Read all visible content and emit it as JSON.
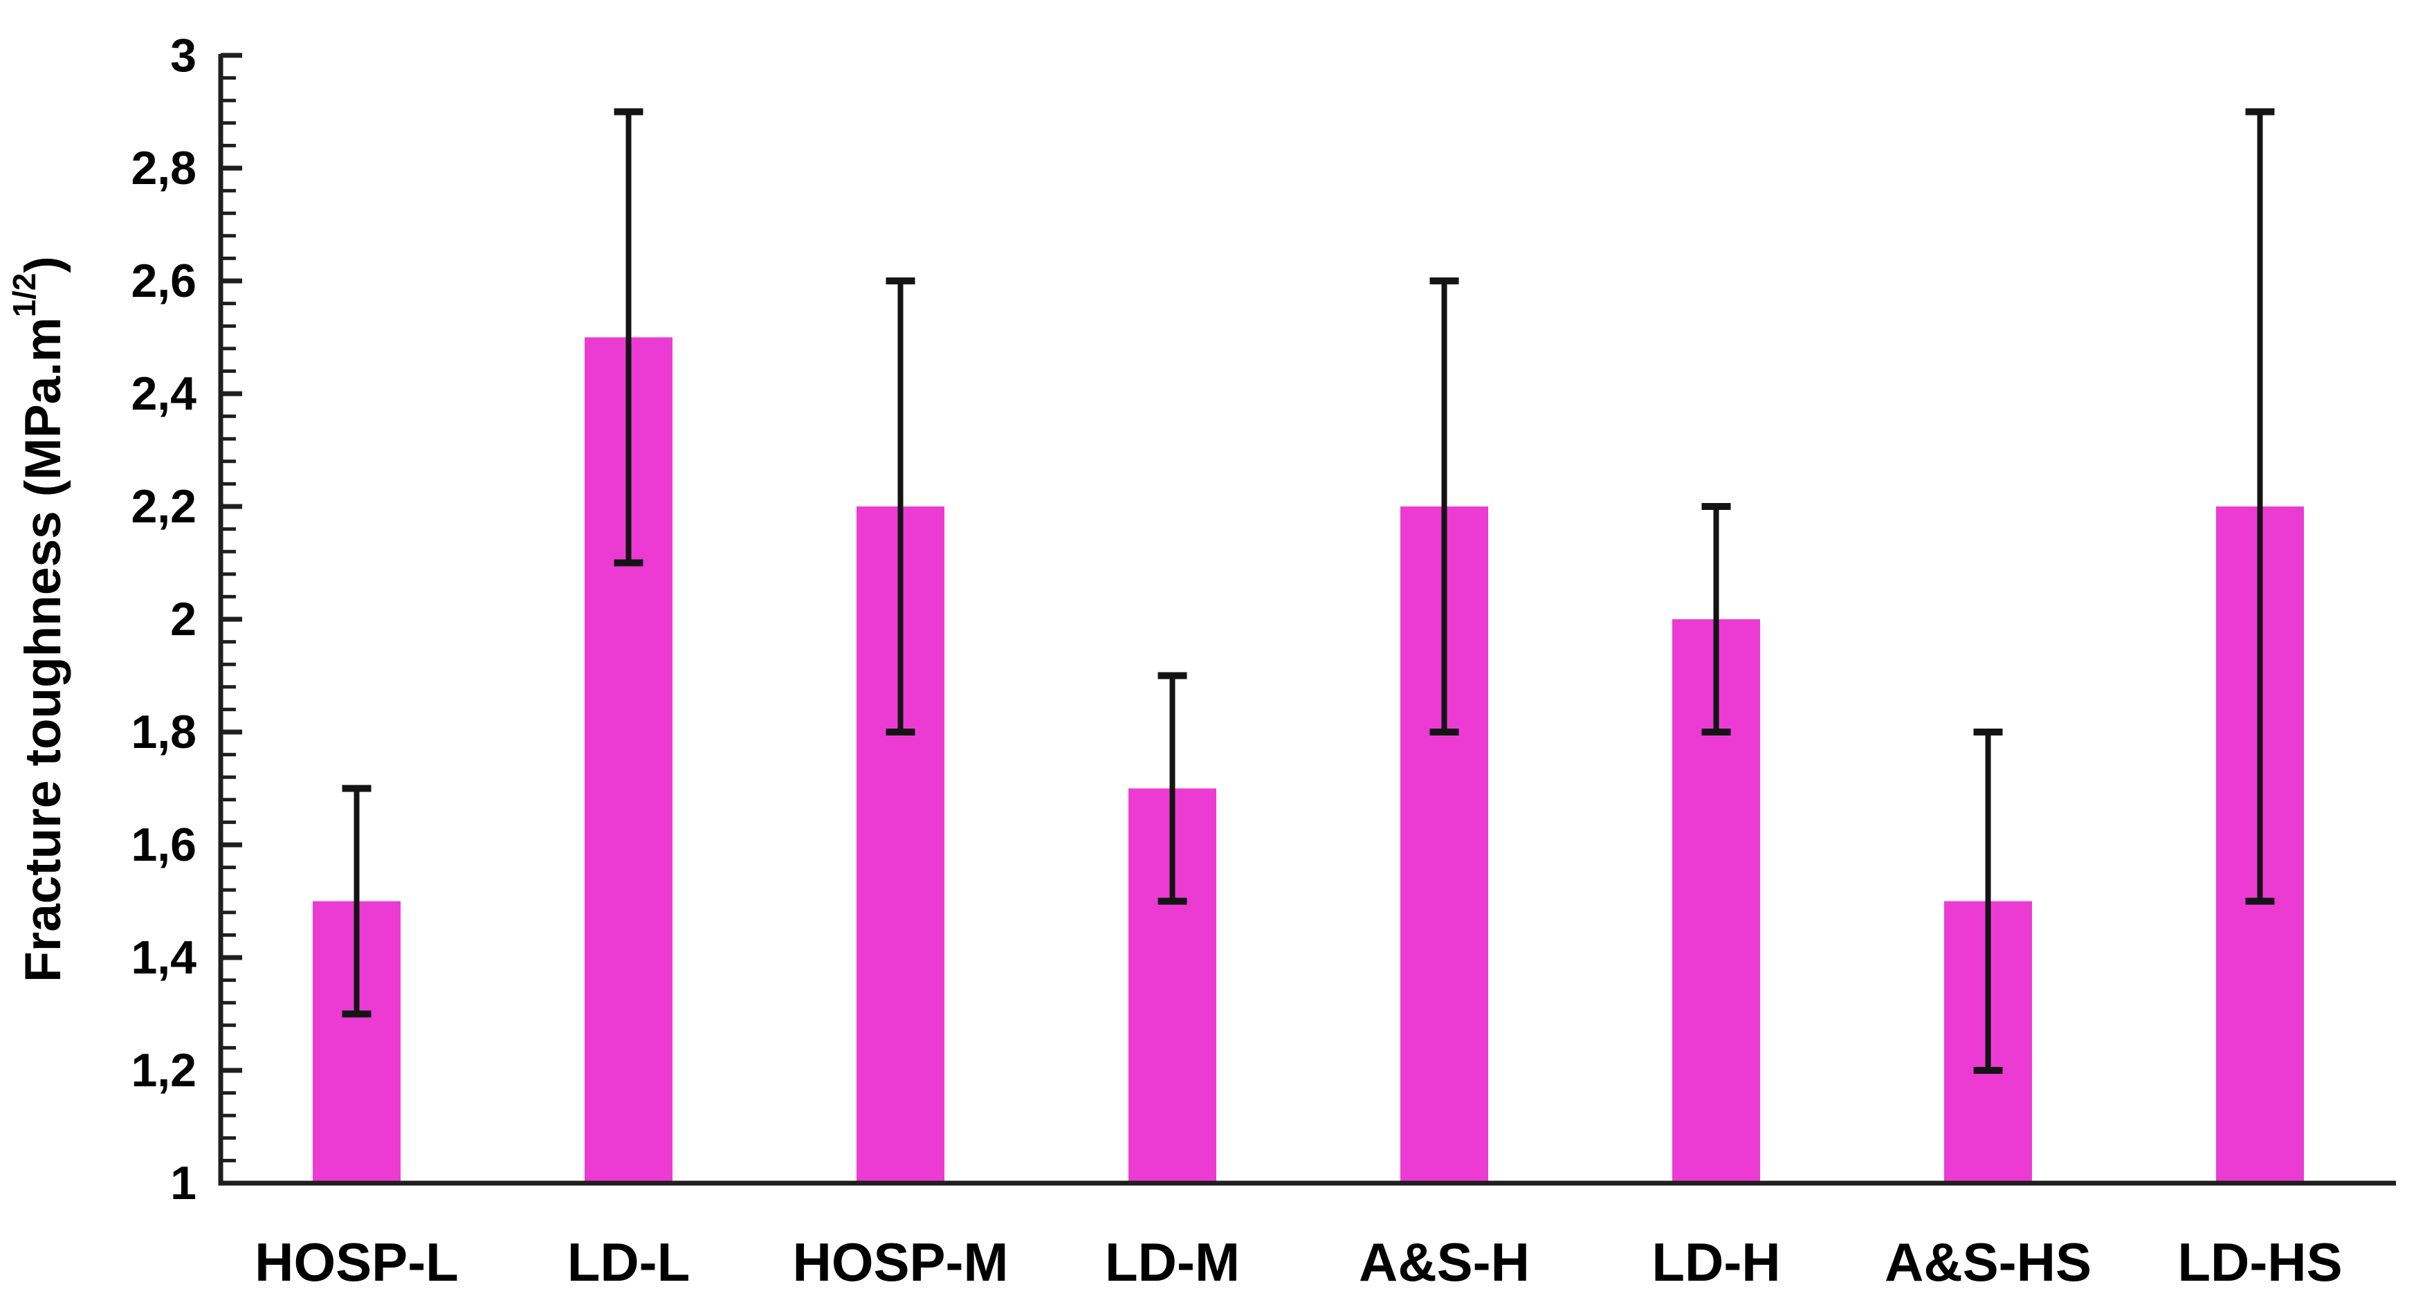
{
  "chart_data": {
    "type": "bar",
    "title": "",
    "xlabel": "",
    "ylabel_base": "Fracture toughness (MPa.m",
    "ylabel_sup": "1/2",
    "ylabel_close": ")",
    "categories": [
      "HOSP-L",
      "LD-L",
      "HOSP-M",
      "LD-M",
      "A&S-H",
      "LD-H",
      "A&S-HS",
      "LD-HS"
    ],
    "series": [
      {
        "name": "Fracture toughness",
        "values": [
          1.5,
          2.5,
          2.2,
          1.7,
          2.2,
          2.0,
          1.5,
          2.2
        ],
        "error_low": [
          1.3,
          2.1,
          1.8,
          1.5,
          1.8,
          1.8,
          1.2,
          1.5
        ],
        "error_high": [
          1.7,
          2.9,
          2.6,
          1.9,
          2.6,
          2.2,
          1.8,
          2.9
        ]
      }
    ],
    "ylim": [
      1,
      3
    ],
    "y_major_unit": 0.2,
    "y_minor_unit": 0.04,
    "y_tick_labels": [
      "1",
      "1,2",
      "1,4",
      "1,6",
      "1,8",
      "2",
      "2,2",
      "2,4",
      "2,6",
      "2,8",
      "3"
    ],
    "decimal_separator": ",",
    "grid": false,
    "legend_position": "none",
    "bar_color": "#EC3BD3",
    "error_bar_color": "#141414",
    "axis_color": "#1f1f1f",
    "text_color": "#000000"
  }
}
